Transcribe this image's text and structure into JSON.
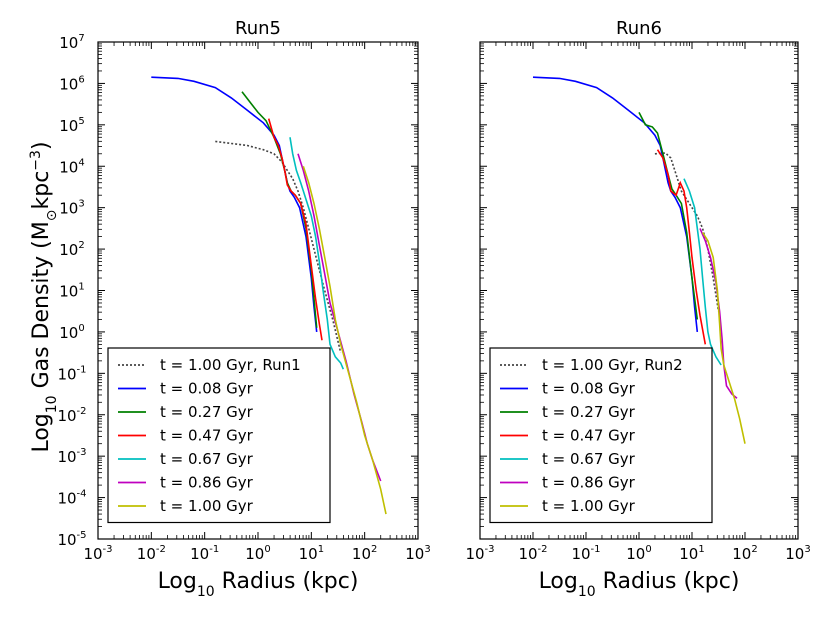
{
  "chart_data": {
    "type": "line",
    "ylabel": "Log10 Gas Density (M⊙kpc−3)",
    "xlabel": "Log10 Radius (kpc)",
    "x_scale": "log",
    "y_scale": "log",
    "xlim_exp": [
      -3,
      3
    ],
    "ylim_exp": [
      -5,
      7
    ],
    "x_tick_exponents": [
      -3,
      -2,
      -1,
      0,
      1,
      2,
      3
    ],
    "y_tick_exponents": [
      -5,
      -4,
      -3,
      -2,
      -1,
      0,
      1,
      2,
      3,
      4,
      5,
      6,
      7
    ],
    "colors": {
      "reference": "#444444",
      "t008": "#0000ff",
      "t027": "#008000",
      "t047": "#ff0000",
      "t067": "#00bfbf",
      "t086": "#bf00bf",
      "t100": "#bfbf00"
    },
    "panels": [
      {
        "title": "Run5",
        "legend_loc": "lower-left",
        "series": [
          {
            "key": "ref",
            "name": "t = 1.00 Gyr, Run1",
            "color": "#444444",
            "dashed": true,
            "points": [
              [
                -0.8,
                4.6
              ],
              [
                -0.5,
                4.55
              ],
              [
                -0.2,
                4.5
              ],
              [
                0.1,
                4.4
              ],
              [
                0.3,
                4.3
              ],
              [
                0.45,
                4.1
              ],
              [
                0.55,
                3.9
              ],
              [
                0.65,
                3.7
              ],
              [
                0.75,
                3.4
              ],
              [
                0.85,
                3.0
              ],
              [
                0.95,
                2.5
              ],
              [
                1.05,
                2.0
              ],
              [
                1.15,
                1.5
              ],
              [
                1.25,
                1.0
              ],
              [
                1.4,
                0.3
              ],
              [
                1.55,
                -0.5
              ]
            ]
          },
          {
            "key": "t008",
            "name": "t = 0.08 Gyr",
            "color": "#0000ff",
            "points": [
              [
                -2.0,
                6.15
              ],
              [
                -1.5,
                6.12
              ],
              [
                -1.2,
                6.05
              ],
              [
                -0.8,
                5.9
              ],
              [
                -0.5,
                5.65
              ],
              [
                -0.2,
                5.35
              ],
              [
                0.1,
                5.05
              ],
              [
                0.3,
                4.75
              ],
              [
                0.4,
                4.5
              ],
              [
                0.45,
                4.2
              ],
              [
                0.5,
                3.9
              ],
              [
                0.55,
                3.6
              ],
              [
                0.6,
                3.4
              ],
              [
                0.68,
                3.25
              ],
              [
                0.78,
                3.0
              ],
              [
                0.9,
                2.3
              ],
              [
                1.0,
                1.3
              ],
              [
                1.05,
                0.6
              ],
              [
                1.1,
                0.0
              ]
            ]
          },
          {
            "key": "t027",
            "name": "t = 0.27 Gyr",
            "color": "#008000",
            "points": [
              [
                -0.3,
                5.8
              ],
              [
                -0.15,
                5.55
              ],
              [
                0.0,
                5.3
              ],
              [
                0.15,
                5.1
              ],
              [
                0.3,
                4.7
              ],
              [
                0.42,
                4.3
              ],
              [
                0.5,
                3.9
              ],
              [
                0.55,
                3.6
              ],
              [
                0.62,
                3.4
              ],
              [
                0.7,
                3.3
              ],
              [
                0.8,
                3.1
              ],
              [
                0.9,
                2.5
              ],
              [
                1.0,
                1.5
              ],
              [
                1.05,
                0.8
              ],
              [
                1.1,
                0.1
              ]
            ]
          },
          {
            "key": "t047",
            "name": "t = 0.47 Gyr",
            "color": "#ff0000",
            "points": [
              [
                0.2,
                5.15
              ],
              [
                0.3,
                4.7
              ],
              [
                0.38,
                4.5
              ],
              [
                0.45,
                4.2
              ],
              [
                0.5,
                3.9
              ],
              [
                0.55,
                3.55
              ],
              [
                0.62,
                3.4
              ],
              [
                0.7,
                3.3
              ],
              [
                0.8,
                3.1
              ],
              [
                0.9,
                2.6
              ],
              [
                1.0,
                1.6
              ],
              [
                1.08,
                0.8
              ],
              [
                1.15,
                0.2
              ],
              [
                1.2,
                -0.2
              ]
            ]
          },
          {
            "key": "t067",
            "name": "t = 0.67 Gyr",
            "color": "#00bfbf",
            "points": [
              [
                0.6,
                4.7
              ],
              [
                0.65,
                4.3
              ],
              [
                0.72,
                3.9
              ],
              [
                0.8,
                3.6
              ],
              [
                0.9,
                3.2
              ],
              [
                1.0,
                2.8
              ],
              [
                1.08,
                2.3
              ],
              [
                1.15,
                1.7
              ],
              [
                1.22,
                1.0
              ],
              [
                1.3,
                0.3
              ],
              [
                1.35,
                -0.3
              ],
              [
                1.45,
                -0.6
              ],
              [
                1.55,
                -0.75
              ],
              [
                1.6,
                -0.9
              ]
            ]
          },
          {
            "key": "t086",
            "name": "t = 0.86 Gyr",
            "color": "#bf00bf",
            "points": [
              [
                0.75,
                4.3
              ],
              [
                0.85,
                3.9
              ],
              [
                0.95,
                3.4
              ],
              [
                1.05,
                2.8
              ],
              [
                1.15,
                2.1
              ],
              [
                1.25,
                1.4
              ],
              [
                1.35,
                0.7
              ],
              [
                1.5,
                0.0
              ],
              [
                1.65,
                -0.7
              ],
              [
                1.8,
                -1.5
              ],
              [
                1.95,
                -2.2
              ],
              [
                2.05,
                -2.7
              ],
              [
                2.15,
                -3.1
              ],
              [
                2.3,
                -3.6
              ]
            ]
          },
          {
            "key": "t100",
            "name": "t = 1.00 Gyr",
            "color": "#bfbf00",
            "points": [
              [
                0.85,
                4.0
              ],
              [
                0.95,
                3.6
              ],
              [
                1.05,
                3.1
              ],
              [
                1.15,
                2.5
              ],
              [
                1.25,
                1.8
              ],
              [
                1.35,
                1.1
              ],
              [
                1.45,
                0.3
              ],
              [
                1.55,
                -0.3
              ],
              [
                1.7,
                -1.0
              ],
              [
                1.85,
                -1.7
              ],
              [
                2.0,
                -2.5
              ],
              [
                2.15,
                -3.1
              ],
              [
                2.3,
                -3.8
              ],
              [
                2.4,
                -4.4
              ]
            ]
          }
        ]
      },
      {
        "title": "Run6",
        "legend_loc": "lower-left",
        "series": [
          {
            "key": "ref",
            "name": "t = 1.00 Gyr, Run2",
            "color": "#444444",
            "dashed": true,
            "points": [
              [
                0.3,
                4.3
              ],
              [
                0.5,
                4.32
              ],
              [
                0.6,
                4.2
              ],
              [
                0.7,
                3.8
              ],
              [
                0.8,
                3.4
              ],
              [
                0.9,
                3.2
              ],
              [
                1.0,
                3.0
              ],
              [
                1.1,
                2.8
              ],
              [
                1.2,
                2.5
              ],
              [
                1.3,
                2.0
              ],
              [
                1.4,
                1.3
              ],
              [
                1.5,
                0.5
              ]
            ]
          },
          {
            "key": "t008",
            "name": "t = 0.08 Gyr",
            "color": "#0000ff",
            "points": [
              [
                -2.0,
                6.15
              ],
              [
                -1.5,
                6.12
              ],
              [
                -1.2,
                6.05
              ],
              [
                -0.8,
                5.9
              ],
              [
                -0.5,
                5.65
              ],
              [
                -0.2,
                5.35
              ],
              [
                0.1,
                5.05
              ],
              [
                0.3,
                4.75
              ],
              [
                0.4,
                4.5
              ],
              [
                0.45,
                4.2
              ],
              [
                0.5,
                3.9
              ],
              [
                0.55,
                3.6
              ],
              [
                0.6,
                3.4
              ],
              [
                0.68,
                3.25
              ],
              [
                0.78,
                3.0
              ],
              [
                0.9,
                2.3
              ],
              [
                1.0,
                1.3
              ],
              [
                1.05,
                0.6
              ],
              [
                1.1,
                0.0
              ]
            ]
          },
          {
            "key": "t027",
            "name": "t = 0.27 Gyr",
            "color": "#008000",
            "points": [
              [
                0.0,
                5.3
              ],
              [
                0.12,
                5.0
              ],
              [
                0.25,
                4.95
              ],
              [
                0.35,
                4.8
              ],
              [
                0.45,
                4.3
              ],
              [
                0.55,
                3.8
              ],
              [
                0.62,
                3.45
              ],
              [
                0.7,
                3.3
              ],
              [
                0.8,
                3.1
              ],
              [
                0.9,
                2.4
              ],
              [
                1.0,
                1.3
              ],
              [
                1.1,
                0.3
              ]
            ]
          },
          {
            "key": "t047",
            "name": "t = 0.47 Gyr",
            "color": "#ff0000",
            "points": [
              [
                0.35,
                4.4
              ],
              [
                0.45,
                4.2
              ],
              [
                0.55,
                3.8
              ],
              [
                0.6,
                3.4
              ],
              [
                0.7,
                3.3
              ],
              [
                0.78,
                3.6
              ],
              [
                0.85,
                3.4
              ],
              [
                0.9,
                3.0
              ],
              [
                0.95,
                2.4
              ],
              [
                1.0,
                1.8
              ],
              [
                1.08,
                1.0
              ],
              [
                1.15,
                0.4
              ],
              [
                1.25,
                -0.3
              ]
            ]
          },
          {
            "key": "t067",
            "name": "t = 0.67 Gyr",
            "color": "#00bfbf",
            "points": [
              [
                0.85,
                3.7
              ],
              [
                0.95,
                3.4
              ],
              [
                1.05,
                3.0
              ],
              [
                1.1,
                2.5
              ],
              [
                1.15,
                2.0
              ],
              [
                1.2,
                1.3
              ],
              [
                1.25,
                0.6
              ],
              [
                1.3,
                0.0
              ],
              [
                1.35,
                -0.3
              ],
              [
                1.45,
                -0.6
              ],
              [
                1.55,
                -0.8
              ]
            ]
          },
          {
            "key": "t086",
            "name": "t = 0.86 Gyr",
            "color": "#bf00bf",
            "points": [
              [
                1.15,
                2.5
              ],
              [
                1.25,
                2.2
              ],
              [
                1.35,
                1.8
              ],
              [
                1.45,
                1.2
              ],
              [
                1.52,
                0.5
              ],
              [
                1.57,
                -0.2
              ],
              [
                1.6,
                -0.8
              ],
              [
                1.65,
                -1.3
              ],
              [
                1.75,
                -1.5
              ],
              [
                1.85,
                -1.6
              ]
            ]
          },
          {
            "key": "t100",
            "name": "t = 1.00 Gyr",
            "color": "#bfbf00",
            "points": [
              [
                1.2,
                2.4
              ],
              [
                1.3,
                2.2
              ],
              [
                1.4,
                1.8
              ],
              [
                1.48,
                1.0
              ],
              [
                1.52,
                0.2
              ],
              [
                1.55,
                -0.4
              ],
              [
                1.6,
                -0.8
              ],
              [
                1.7,
                -1.2
              ],
              [
                1.8,
                -1.6
              ],
              [
                1.9,
                -2.1
              ],
              [
                2.0,
                -2.7
              ]
            ]
          }
        ]
      }
    ]
  }
}
